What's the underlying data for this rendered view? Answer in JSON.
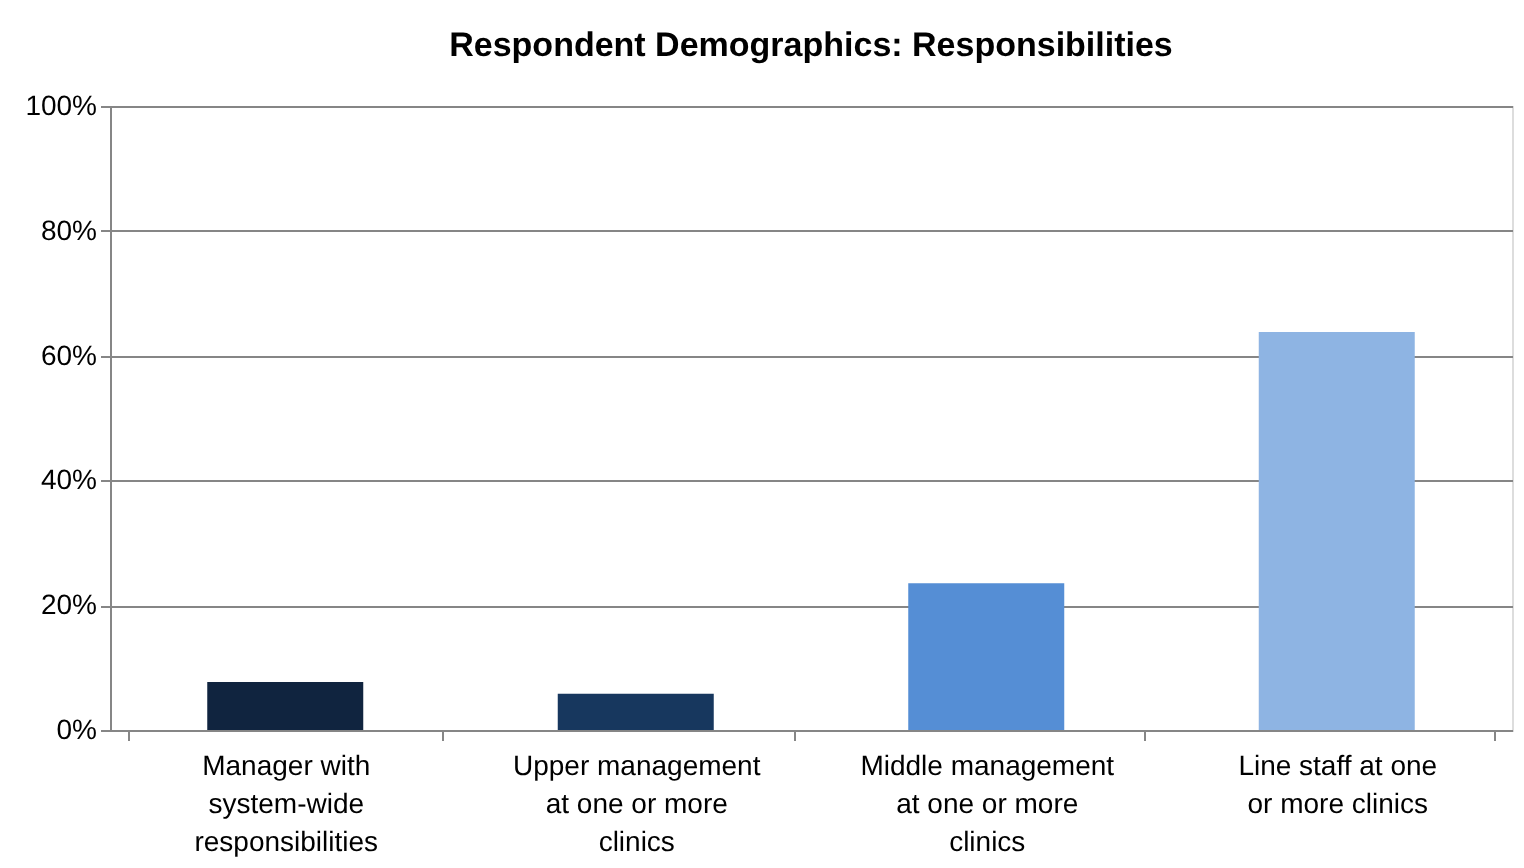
{
  "chart_data": {
    "type": "bar",
    "title": "Respondent Demographics: Responsibilities",
    "categories": [
      "Manager with system-wide responsibilities",
      "Upper management at one or more clinics",
      "Middle management at one or more clinics",
      "Line staff at one or more clinics"
    ],
    "values": [
      7.7,
      5.8,
      23.5,
      63.8
    ],
    "colors": [
      "#10243f",
      "#17375e",
      "#558ed5",
      "#8eb4e3"
    ],
    "ylim": [
      0,
      100
    ],
    "yticks": [
      {
        "value": 0,
        "label": "0%"
      },
      {
        "value": 20,
        "label": "20%"
      },
      {
        "value": 40,
        "label": "40%"
      },
      {
        "value": 60,
        "label": "60%"
      },
      {
        "value": 80,
        "label": "80%"
      },
      {
        "value": 100,
        "label": "100%"
      }
    ],
    "grid": "y",
    "legend": false
  }
}
